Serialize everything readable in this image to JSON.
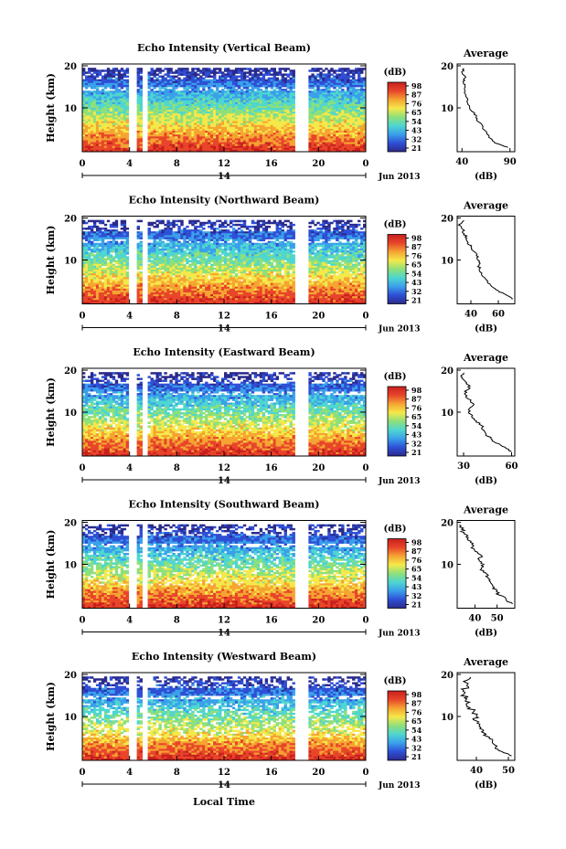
{
  "colorbar": {
    "unit": "(dB)",
    "ticks": [
      "98",
      "87",
      "76",
      "65",
      "54",
      "43",
      "32",
      "21"
    ],
    "colors": [
      "#2a2a8c",
      "#2f4fd6",
      "#3aa0ea",
      "#4fd6d0",
      "#8ee07a",
      "#f5e84a",
      "#f5a432",
      "#e8452a",
      "#c8201e"
    ]
  },
  "x_ticks": [
    "0",
    "4",
    "8",
    "12",
    "16",
    "20",
    "0"
  ],
  "date_label": "14",
  "month_label": "Jun 2013",
  "x_axis_title": "Local Time",
  "y_label": "Height (km)",
  "avg_title": "Average",
  "avg_xlabel": "(dB)",
  "chart_data": [
    {
      "type": "heatmap",
      "title": "Echo Intensity (Vertical Beam)",
      "ylabel": "Height (km)",
      "xlabel": "",
      "x_range": [
        0,
        24
      ],
      "y_range": [
        0,
        20
      ],
      "y_ticks": [
        "20",
        "10"
      ],
      "colorbar_ticks": [
        "98",
        "87",
        "76",
        "65",
        "54",
        "43",
        "32",
        "21"
      ],
      "data_gaps_hours": [
        [
          3.9,
          4.7
        ],
        [
          5.0,
          5.6
        ],
        [
          18.0,
          19.2
        ]
      ],
      "average_profile": {
        "title": "Average",
        "x_ticks": [
          "40",
          "90"
        ],
        "x_range": [
          35,
          95
        ],
        "heights": [
          1,
          2,
          3,
          4,
          5,
          6,
          7,
          8,
          9,
          10,
          11,
          12,
          13,
          14,
          15,
          16,
          17,
          18,
          19
        ],
        "values": [
          88,
          74,
          70,
          66,
          63,
          61,
          56,
          55,
          52,
          48,
          46,
          46,
          44,
          43,
          43,
          41,
          44,
          40,
          42
        ]
      }
    },
    {
      "type": "heatmap",
      "title": "Echo Intensity (Northward Beam)",
      "ylabel": "Height (km)",
      "xlabel": "",
      "x_range": [
        0,
        24
      ],
      "y_range": [
        0,
        20
      ],
      "y_ticks": [
        "20",
        "10"
      ],
      "colorbar_ticks": [
        "98",
        "87",
        "76",
        "65",
        "54",
        "43",
        "32",
        "21"
      ],
      "data_gaps_hours": [
        [
          3.9,
          4.7
        ],
        [
          5.0,
          5.6
        ],
        [
          18.0,
          19.2
        ]
      ],
      "average_profile": {
        "title": "Average",
        "x_ticks": [
          "40",
          "60"
        ],
        "x_range": [
          30,
          72
        ],
        "heights": [
          1,
          2,
          3,
          4,
          5,
          6,
          7,
          8,
          9,
          10,
          11,
          12,
          13,
          14,
          15,
          16,
          17,
          18,
          19
        ],
        "values": [
          70,
          66,
          60,
          55,
          52,
          50,
          48,
          46,
          46,
          45,
          44,
          42,
          40,
          38,
          37,
          35,
          34,
          31,
          35
        ]
      }
    },
    {
      "type": "heatmap",
      "title": "Echo Intensity (Eastward Beam)",
      "ylabel": "Height (km)",
      "xlabel": "",
      "x_range": [
        0,
        24
      ],
      "y_range": [
        0,
        20
      ],
      "y_ticks": [
        "20",
        "10"
      ],
      "colorbar_ticks": [
        "98",
        "87",
        "76",
        "65",
        "54",
        "43",
        "32",
        "21"
      ],
      "data_gaps_hours": [
        [
          3.9,
          4.7
        ],
        [
          5.0,
          5.6
        ],
        [
          18.0,
          19.2
        ]
      ],
      "average_profile": {
        "title": "Average",
        "x_ticks": [
          "30",
          "60"
        ],
        "x_range": [
          26,
          62
        ],
        "heights": [
          1,
          2,
          3,
          4,
          5,
          6,
          7,
          8,
          9,
          10,
          11,
          12,
          13,
          14,
          15,
          16,
          17,
          18,
          19
        ],
        "values": [
          60,
          56,
          50,
          47,
          44,
          42,
          41,
          38,
          35,
          33,
          34,
          36,
          33,
          31,
          32,
          34,
          31,
          29,
          30
        ]
      }
    },
    {
      "type": "heatmap",
      "title": "Echo Intensity (Southward Beam)",
      "ylabel": "Height (km)",
      "xlabel": "",
      "x_range": [
        0,
        24
      ],
      "y_range": [
        0,
        20
      ],
      "y_ticks": [
        "20",
        "10"
      ],
      "colorbar_ticks": [
        "98",
        "87",
        "76",
        "65",
        "54",
        "43",
        "32",
        "21"
      ],
      "data_gaps_hours": [
        [
          3.9,
          4.7
        ],
        [
          5.0,
          5.6
        ],
        [
          18.0,
          19.2
        ]
      ],
      "average_profile": {
        "title": "Average",
        "x_ticks": [
          "40",
          "50"
        ],
        "x_range": [
          32,
          58
        ],
        "heights": [
          1,
          2,
          3,
          4,
          5,
          6,
          7,
          8,
          9,
          10,
          11,
          12,
          13,
          14,
          15,
          16,
          17,
          18,
          19
        ],
        "values": [
          57,
          54,
          51,
          50,
          48,
          47,
          46,
          45,
          43,
          44,
          42,
          43,
          40,
          39,
          38,
          37,
          35,
          34,
          33
        ]
      }
    },
    {
      "type": "heatmap",
      "title": "Echo Intensity (Westward Beam)",
      "ylabel": "Height (km)",
      "xlabel": "Local Time",
      "x_range": [
        0,
        24
      ],
      "y_range": [
        0,
        20
      ],
      "y_ticks": [
        "20",
        "10"
      ],
      "colorbar_ticks": [
        "98",
        "87",
        "76",
        "65",
        "54",
        "43",
        "32",
        "21"
      ],
      "data_gaps_hours": [
        [
          3.9,
          4.7
        ],
        [
          5.0,
          5.6
        ],
        [
          18.0,
          19.2
        ]
      ],
      "average_profile": {
        "title": "Average",
        "x_ticks": [
          "40",
          "50"
        ],
        "x_range": [
          34,
          52
        ],
        "heights": [
          1,
          2,
          3,
          4,
          5,
          6,
          7,
          8,
          9,
          10,
          11,
          12,
          13,
          14,
          15,
          16,
          17,
          18,
          19
        ],
        "values": [
          51,
          48,
          46,
          45,
          44,
          43,
          42,
          41,
          40,
          40,
          39,
          38,
          37,
          37,
          36,
          36,
          37,
          36,
          38
        ]
      }
    }
  ]
}
